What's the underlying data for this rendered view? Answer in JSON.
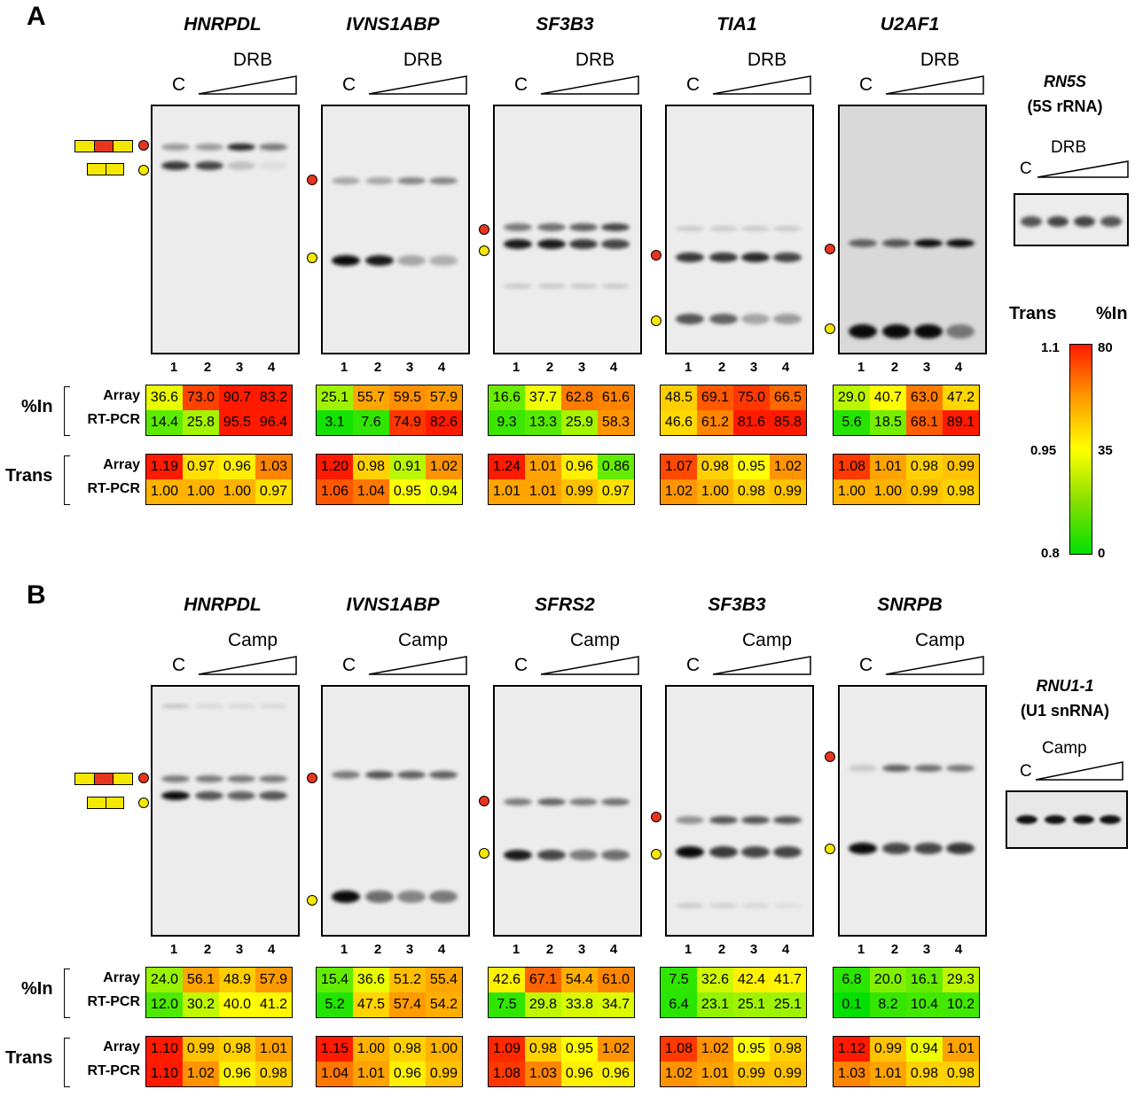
{
  "panelA": {
    "letter": "A",
    "treatment": "DRB",
    "control_label": "C",
    "lanes": [
      "1",
      "2",
      "3",
      "4"
    ],
    "genes": [
      "HNRPDL",
      "IVNS1ABP",
      "SF3B3",
      "TIA1",
      "U2AF1"
    ],
    "pctIn_label": "%In",
    "trans_label": "Trans",
    "array_label": "Array",
    "rtpcr_label": "RT-PCR",
    "pctIn": [
      {
        "array": [
          "36.6",
          "73.0",
          "90.7",
          "83.2"
        ],
        "rtpcr": [
          "14.4",
          "25.8",
          "95.5",
          "96.4"
        ]
      },
      {
        "array": [
          "25.1",
          "55.7",
          "59.5",
          "57.9"
        ],
        "rtpcr": [
          "3.1",
          "7.6",
          "74.9",
          "82.6"
        ]
      },
      {
        "array": [
          "16.6",
          "37.7",
          "62.8",
          "61.6"
        ],
        "rtpcr": [
          "9.3",
          "13.3",
          "25.9",
          "58.3"
        ]
      },
      {
        "array": [
          "48.5",
          "69.1",
          "75.0",
          "66.5"
        ],
        "rtpcr": [
          "46.6",
          "61.2",
          "81.6",
          "85.8"
        ]
      },
      {
        "array": [
          "29.0",
          "40.7",
          "63.0",
          "47.2"
        ],
        "rtpcr": [
          "5.6",
          "18.5",
          "68.1",
          "89.1"
        ]
      }
    ],
    "trans": [
      {
        "array": [
          "1.19",
          "0.97",
          "0.96",
          "1.03"
        ],
        "rtpcr": [
          "1.00",
          "1.00",
          "1.00",
          "0.97"
        ]
      },
      {
        "array": [
          "1.20",
          "0.98",
          "0.91",
          "1.02"
        ],
        "rtpcr": [
          "1.06",
          "1.04",
          "0.95",
          "0.94"
        ]
      },
      {
        "array": [
          "1.24",
          "1.01",
          "0.96",
          "0.86"
        ],
        "rtpcr": [
          "1.01",
          "1.01",
          "0.99",
          "0.97"
        ]
      },
      {
        "array": [
          "1.07",
          "0.98",
          "0.95",
          "1.02"
        ],
        "rtpcr": [
          "1.02",
          "1.00",
          "0.98",
          "0.99"
        ]
      },
      {
        "array": [
          "1.08",
          "1.01",
          "0.98",
          "0.99"
        ],
        "rtpcr": [
          "1.00",
          "1.00",
          "0.99",
          "0.98"
        ]
      }
    ],
    "ctrl_gene": "RN5S",
    "ctrl_sub": "(5S rRNA)"
  },
  "panelB": {
    "letter": "B",
    "treatment": "Camp",
    "control_label": "C",
    "lanes": [
      "1",
      "2",
      "3",
      "4"
    ],
    "genes": [
      "HNRPDL",
      "IVNS1ABP",
      "SFRS2",
      "SF3B3",
      "SNRPB"
    ],
    "pctIn_label": "%In",
    "trans_label": "Trans",
    "array_label": "Array",
    "rtpcr_label": "RT-PCR",
    "pctIn": [
      {
        "array": [
          "24.0",
          "56.1",
          "48.9",
          "57.9"
        ],
        "rtpcr": [
          "12.0",
          "30.2",
          "40.0",
          "41.2"
        ]
      },
      {
        "array": [
          "15.4",
          "36.6",
          "51.2",
          "55.4"
        ],
        "rtpcr": [
          "5.2",
          "47.5",
          "57.4",
          "54.2"
        ]
      },
      {
        "array": [
          "42.6",
          "67.1",
          "54.4",
          "61.0"
        ],
        "rtpcr": [
          "7.5",
          "29.8",
          "33.8",
          "34.7"
        ]
      },
      {
        "array": [
          "7.5",
          "32.6",
          "42.4",
          "41.7"
        ],
        "rtpcr": [
          "6.4",
          "23.1",
          "25.1",
          "25.1"
        ]
      },
      {
        "array": [
          "6.8",
          "20.0",
          "16.1",
          "29.3"
        ],
        "rtpcr": [
          "0.1",
          "8.2",
          "10.4",
          "10.2"
        ]
      }
    ],
    "trans": [
      {
        "array": [
          "1.10",
          "0.99",
          "0.98",
          "1.01"
        ],
        "rtpcr": [
          "1.10",
          "1.02",
          "0.96",
          "0.98"
        ]
      },
      {
        "array": [
          "1.15",
          "1.00",
          "0.98",
          "1.00"
        ],
        "rtpcr": [
          "1.04",
          "1.01",
          "0.96",
          "0.99"
        ]
      },
      {
        "array": [
          "1.09",
          "0.98",
          "0.95",
          "1.02"
        ],
        "rtpcr": [
          "1.08",
          "1.03",
          "0.96",
          "0.96"
        ]
      },
      {
        "array": [
          "1.08",
          "1.02",
          "0.95",
          "0.98"
        ],
        "rtpcr": [
          "1.02",
          "1.01",
          "0.99",
          "0.99"
        ]
      },
      {
        "array": [
          "1.12",
          "0.99",
          "0.94",
          "1.01"
        ],
        "rtpcr": [
          "1.03",
          "1.01",
          "0.98",
          "0.98"
        ]
      }
    ],
    "ctrl_gene": "RNU1-1",
    "ctrl_sub": "(U1 snRNA)"
  },
  "colorbar": {
    "trans_label": "Trans",
    "pctIn_label": "%In",
    "trans_ticks": [
      "1.1",
      "0.95",
      "0.8"
    ],
    "pctIn_ticks": [
      "80",
      "35",
      "0"
    ],
    "colors": [
      "#ff1a00",
      "#ffff00",
      "#00e000"
    ]
  },
  "colors": {
    "inclusion": "#e8351f",
    "skipping": "#f5e800"
  }
}
